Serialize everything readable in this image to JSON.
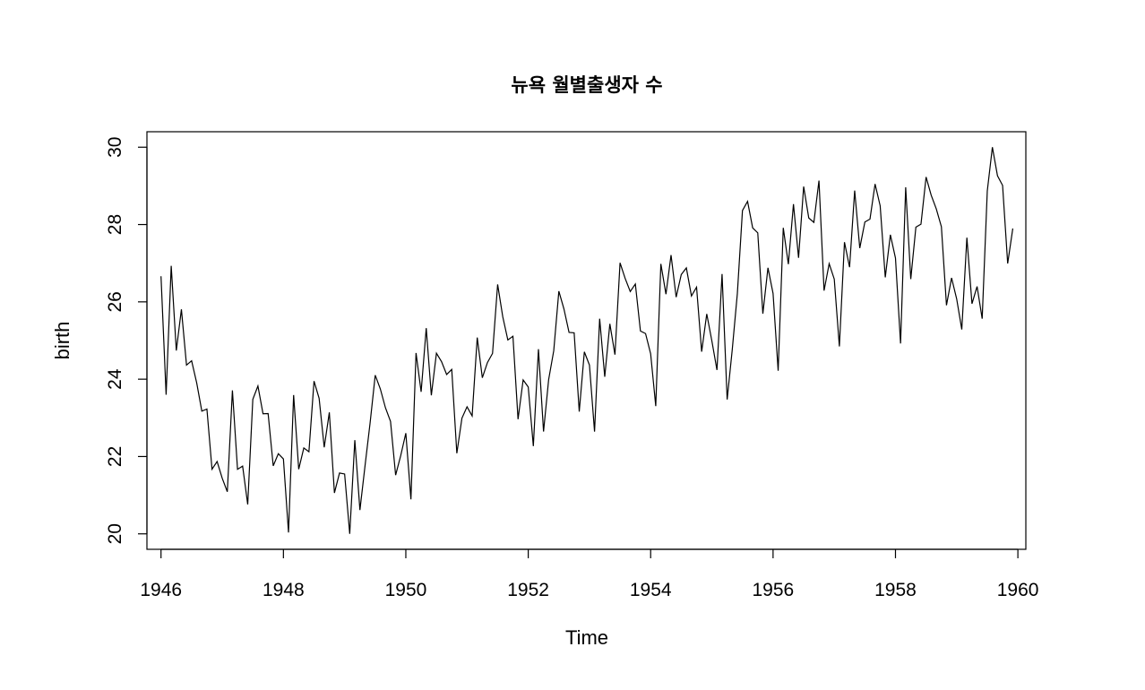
{
  "chart_data": {
    "type": "line",
    "title": "뉴욕 월별출생자 수",
    "xlabel": "Time",
    "ylabel": "birth",
    "xlim": [
      1945.77,
      1960.13
    ],
    "ylim": [
      19.6,
      30.4
    ],
    "x_ticks": [
      1946,
      1948,
      1950,
      1952,
      1954,
      1956,
      1958,
      1960
    ],
    "x_tick_labels": [
      "1946",
      "1948",
      "1950",
      "1952",
      "1954",
      "1956",
      "1958",
      "1960"
    ],
    "y_ticks": [
      20,
      22,
      24,
      26,
      28,
      30
    ],
    "y_tick_labels": [
      "20",
      "22",
      "24",
      "26",
      "28",
      "30"
    ],
    "grid": false,
    "legend": "none",
    "line_color": "#000000",
    "x_start": 1946,
    "frequency": 12,
    "series": [
      {
        "values": [
          26.663,
          23.598,
          26.931,
          24.74,
          25.806,
          24.364,
          24.477,
          23.901,
          23.175,
          23.227,
          21.672,
          21.87,
          21.439,
          21.089,
          23.709,
          21.669,
          21.752,
          20.761,
          23.479,
          23.824,
          23.105,
          23.11,
          21.759,
          22.073,
          21.937,
          20.035,
          23.59,
          21.672,
          22.222,
          22.123,
          23.95,
          23.504,
          22.238,
          23.142,
          21.059,
          21.573,
          21.548,
          20.0,
          22.424,
          20.615,
          21.761,
          22.874,
          24.104,
          23.748,
          23.262,
          22.907,
          21.519,
          22.025,
          22.604,
          20.894,
          24.677,
          23.673,
          25.32,
          23.583,
          24.671,
          24.454,
          24.122,
          24.252,
          22.084,
          22.991,
          23.287,
          23.049,
          25.076,
          24.037,
          24.43,
          24.667,
          26.451,
          25.618,
          25.014,
          25.11,
          22.964,
          23.981,
          23.798,
          22.27,
          24.775,
          22.646,
          23.988,
          24.737,
          26.276,
          25.816,
          25.21,
          25.199,
          23.162,
          24.707,
          24.364,
          22.644,
          25.565,
          24.062,
          25.431,
          24.635,
          27.009,
          26.606,
          26.268,
          26.462,
          25.246,
          25.18,
          24.657,
          23.304,
          26.982,
          26.199,
          27.21,
          26.122,
          26.706,
          26.878,
          26.152,
          26.379,
          24.712,
          25.688,
          24.99,
          24.239,
          26.721,
          23.475,
          24.767,
          26.219,
          28.361,
          28.599,
          27.914,
          27.784,
          25.693,
          26.881,
          26.217,
          24.218,
          27.914,
          26.975,
          28.527,
          27.139,
          28.982,
          28.169,
          28.056,
          29.136,
          26.291,
          26.987,
          26.589,
          24.848,
          27.543,
          26.896,
          28.878,
          27.39,
          28.065,
          28.141,
          29.048,
          28.484,
          26.634,
          27.735,
          27.132,
          24.924,
          28.963,
          26.589,
          27.931,
          28.009,
          29.229,
          28.759,
          28.405,
          27.945,
          25.912,
          26.619,
          26.076,
          25.286,
          27.66,
          25.951,
          26.398,
          25.565,
          28.865,
          30.0,
          29.261,
          29.012,
          26.992,
          27.897
        ]
      }
    ]
  }
}
